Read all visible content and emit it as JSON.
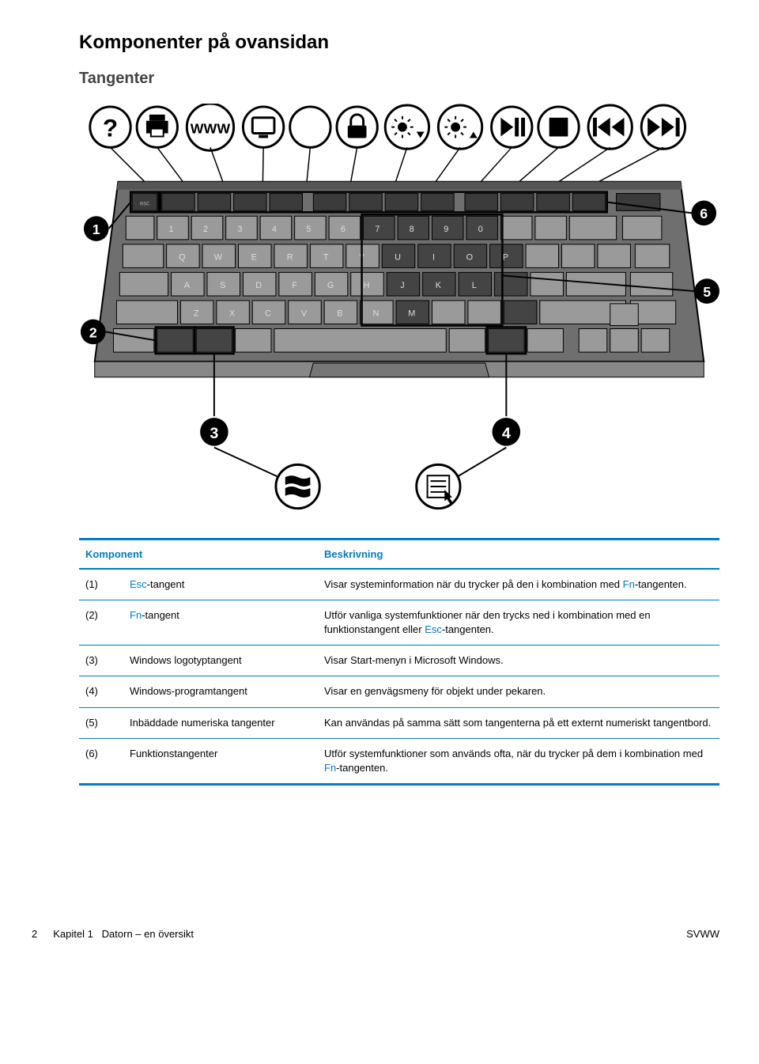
{
  "headings": {
    "section": "Komponenter på ovansidan",
    "subsection": "Tangenter"
  },
  "table": {
    "headers": {
      "component": "Komponent",
      "description": "Beskrivning"
    },
    "rows": [
      {
        "num": "(1)",
        "name_html": "<span class='term-esc'>Esc</span>-tangent",
        "desc_html": "Visar systeminformation när du trycker på den i kombination med <span class='term-fn'>Fn</span>-tangenten."
      },
      {
        "num": "(2)",
        "name_html": "<span class='term-fn'>Fn</span>-tangent",
        "desc_html": "Utför vanliga systemfunktioner när den trycks ned i kombination med en funktionstangent eller <span class='term-esc'>Esc</span>-tangenten."
      },
      {
        "num": "(3)",
        "name_html": "Windows logotyptangent",
        "desc_html": "Visar Start-menyn i Microsoft Windows."
      },
      {
        "num": "(4)",
        "name_html": "Windows-programtangent",
        "desc_html": "Visar en genvägsmeny för objekt under pekaren."
      },
      {
        "num": "(5)",
        "name_html": "Inbäddade numeriska tangenter",
        "desc_html": "Kan användas på samma sätt som tangenterna på ett externt numeriskt tangentbord."
      },
      {
        "num": "(6)",
        "name_html": "Funktionstangenter",
        "desc_html": "Utför systemfunktioner som används ofta, när du trycker på dem i kombination med <span class='term-fn'>Fn</span>-tangenten."
      }
    ]
  },
  "diagram": {
    "callout_icons": [
      "help",
      "print",
      "www",
      "display",
      "sleep",
      "lock",
      "brightness-down",
      "brightness-up",
      "play-pause",
      "stop",
      "prev",
      "next"
    ],
    "side_callouts": [
      "1",
      "2",
      "3",
      "4",
      "5",
      "6"
    ],
    "bottom_icons": [
      "windows-logo",
      "context-menu"
    ],
    "colors": {
      "keyboard_body": "#6f6f6f",
      "keyboard_top": "#555555",
      "key_face": "#9a9a9a",
      "key_dark": "#3b3b3b",
      "outline": "#000000",
      "lines": "#000000",
      "bubble": "#000000",
      "bubble_text": "#ffffff",
      "highlight_key": "#444444"
    }
  },
  "footer": {
    "page_num": "2",
    "chapter": "Kapitel 1",
    "chapter_title": "Datorn – en översikt",
    "right": "SVWW"
  },
  "theme": {
    "accent": "#007cc3",
    "text": "#000000",
    "bg": "#ffffff"
  }
}
